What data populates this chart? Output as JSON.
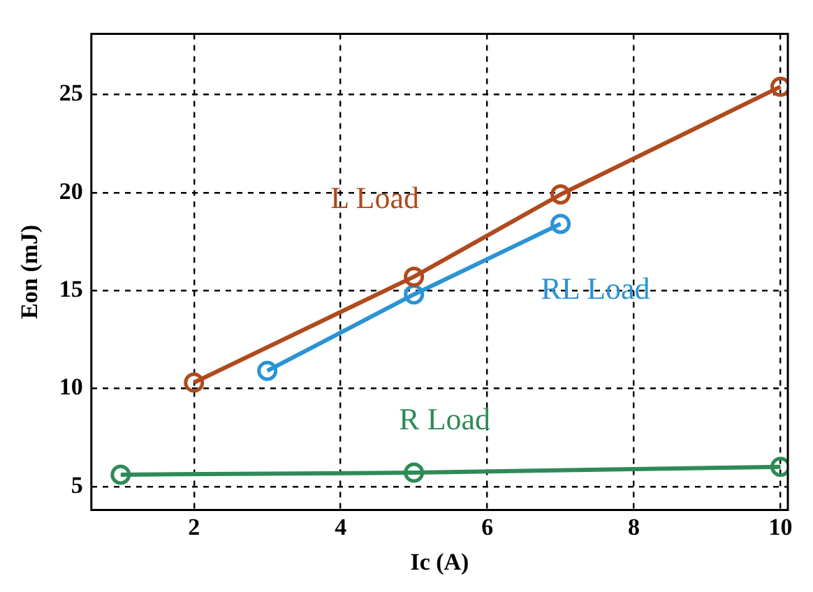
{
  "chart_data": {
    "type": "line",
    "xlabel": "Ic (A)",
    "ylabel": "Eon (mJ)",
    "xlim": [
      0.6,
      10.1
    ],
    "ylim": [
      3.8,
      28.1
    ],
    "xticks": [
      2,
      4,
      6,
      8,
      10
    ],
    "yticks": [
      5,
      10,
      15,
      20,
      25
    ],
    "grid": true,
    "legend": false,
    "marker": "circle",
    "line_style": "solid",
    "series": [
      {
        "name": "L Load",
        "color": "#b04a1c",
        "x": [
          2,
          5,
          7,
          10
        ],
        "values": [
          10.3,
          15.7,
          19.9,
          25.4
        ]
      },
      {
        "name": "RL Load",
        "color": "#2a93d5",
        "x": [
          3,
          5,
          7
        ],
        "values": [
          10.9,
          14.8,
          18.4
        ]
      },
      {
        "name": "R Load",
        "color": "#2e8a57",
        "x": [
          1,
          5,
          10
        ],
        "values": [
          5.6,
          5.7,
          6.0
        ]
      }
    ]
  }
}
